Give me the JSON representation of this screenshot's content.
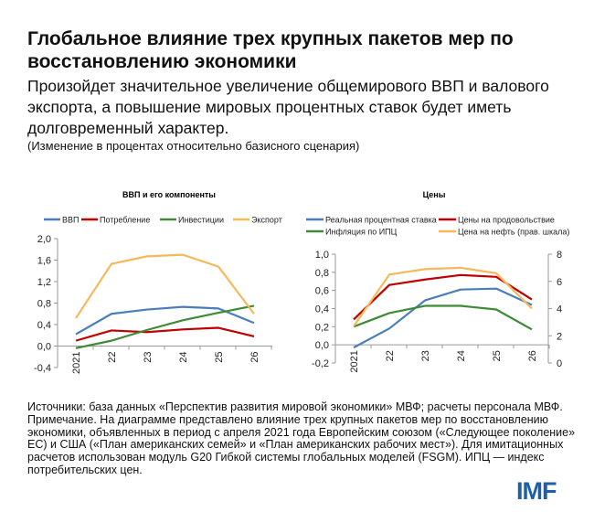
{
  "header": {
    "title": "Глобальное влияние трех крупных пакетов мер по восстановлению экономики",
    "subtitle": "Произойдет значительное увеличение общемирового ВВП и валового экспорта, а повышение мировых процентных ставок будет иметь долговременный характер.",
    "note_units": "(Изменение в процентах относительно базисного сценария)"
  },
  "chart_data": [
    {
      "type": "line",
      "title": "ВВП и его компоненты",
      "categories": [
        "2021",
        "22",
        "23",
        "24",
        "25",
        "26"
      ],
      "ylim": [
        -0.4,
        2.0
      ],
      "yticks": [
        "-0,4",
        "0,0",
        "0,4",
        "0,8",
        "1,2",
        "1,6",
        "2,0"
      ],
      "grid": false,
      "legend": "top",
      "series": [
        {
          "name": "ВВП",
          "color": "#4a7ebb",
          "values": [
            0.22,
            0.6,
            0.68,
            0.73,
            0.7,
            0.43
          ]
        },
        {
          "name": "Потребление",
          "color": "#c00000",
          "values": [
            0.1,
            0.29,
            0.26,
            0.31,
            0.34,
            0.18
          ]
        },
        {
          "name": "Инвестиции",
          "color": "#3d8b37",
          "values": [
            -0.04,
            0.1,
            0.3,
            0.48,
            0.62,
            0.75
          ]
        },
        {
          "name": "Экспорт",
          "color": "#f5b95a",
          "values": [
            0.52,
            1.53,
            1.67,
            1.7,
            1.48,
            0.6
          ]
        }
      ]
    },
    {
      "type": "line",
      "title": "Цены",
      "categories": [
        "2021",
        "22",
        "23",
        "24",
        "25",
        "26"
      ],
      "ylim": [
        -0.2,
        1.0
      ],
      "yticks": [
        "-0,2",
        "0,0",
        "0,2",
        "0,4",
        "0,6",
        "0,8",
        "1,0"
      ],
      "y2lim": [
        0,
        8
      ],
      "y2ticks": [
        "0",
        "2",
        "4",
        "6",
        "8"
      ],
      "grid": false,
      "legend": "top",
      "series": [
        {
          "name": "Реальная процентная ставка",
          "color": "#4a7ebb",
          "axis": "left",
          "values": [
            -0.03,
            0.18,
            0.49,
            0.61,
            0.62,
            0.44
          ]
        },
        {
          "name": "Цены на продовольствие",
          "color": "#c00000",
          "axis": "left",
          "values": [
            0.28,
            0.66,
            0.72,
            0.77,
            0.75,
            0.5
          ]
        },
        {
          "name": "Инфляция по ИПЦ",
          "color": "#3d8b37",
          "axis": "left",
          "values": [
            0.2,
            0.35,
            0.43,
            0.43,
            0.39,
            0.17
          ]
        },
        {
          "name": "Цена на нефть (прав. шкала)",
          "color": "#f5b95a",
          "axis": "right",
          "values": [
            2.7,
            6.5,
            6.9,
            7.0,
            6.6,
            4.0
          ]
        }
      ]
    }
  ],
  "footer": {
    "sources": "Источники: база данных «Перспектив развития мировой экономики» МВФ; расчеты персонала МВФ.",
    "note": "Примечание. На диаграмме представлено влияние трех крупных пакетов мер по восстановлению экономики, объявленных в период с апреля 2021 года Европейским союзом («Следующее поколение» ЕС) и США («План американских семей» и «План американских рабочих мест»). Для имитационных расчетов использован модуль G20 Гибкой системы глобальных моделей (FSGM). ИПЦ — индекс потребительских цен.",
    "logo": "IMF",
    "logo_color": "#1f5fa8"
  }
}
